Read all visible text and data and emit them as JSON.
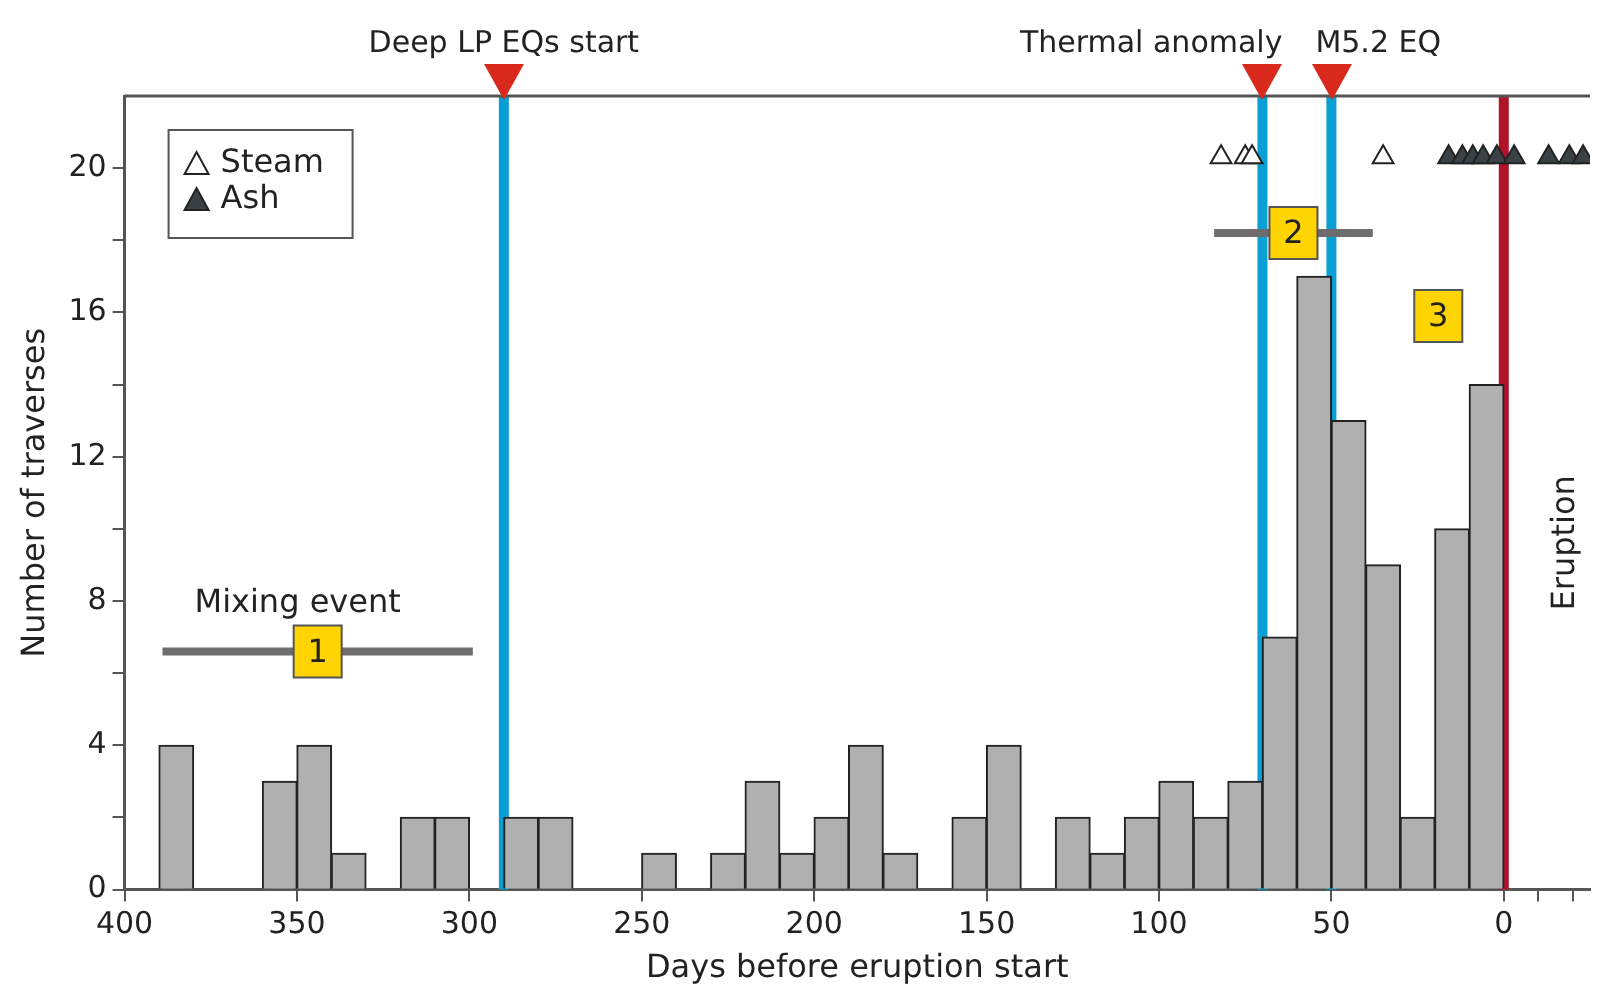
{
  "chart_data": {
    "type": "histogram",
    "xlabel": "Days before eruption start",
    "ylabel": "Number of traverses",
    "bins": [
      390,
      380,
      370,
      360,
      350,
      340,
      330,
      320,
      310,
      300,
      290,
      280,
      270,
      260,
      250,
      240,
      230,
      220,
      210,
      200,
      190,
      180,
      170,
      160,
      150,
      140,
      130,
      120,
      110,
      100,
      90,
      80,
      70,
      60,
      50,
      40,
      30,
      20,
      10,
      0
    ],
    "values": [
      4,
      0,
      0,
      3,
      4,
      1,
      0,
      2,
      2,
      0,
      2,
      2,
      0,
      0,
      1,
      0,
      1,
      3,
      1,
      2,
      4,
      1,
      0,
      2,
      4,
      0,
      2,
      1,
      2,
      3,
      2,
      3,
      7,
      17,
      13,
      9,
      2,
      10,
      14
    ],
    "color": "#b0b0b0",
    "series": [
      {
        "type": "scatter",
        "name": "Steam",
        "color": "#ffffff",
        "marker": "triangle",
        "x": [
          82,
          75,
          73,
          35
        ],
        "values": [
          20.3,
          20.3,
          20.3,
          20.3
        ]
      },
      {
        "type": "scatter",
        "name": "Ash",
        "color": "#3a4245",
        "marker": "triangle",
        "x": [
          16,
          12,
          9,
          6,
          2,
          -3,
          -13,
          -19,
          -23
        ],
        "values": [
          20.3,
          20.3,
          20.3,
          20.3,
          20.3,
          20.3,
          20.3,
          20.3,
          20.3
        ]
      },
      {
        "type": "line",
        "name": "Mixing event",
        "color": "#6d6d6d",
        "marker": "none",
        "x": [
          389,
          299
        ],
        "values": [
          6.6,
          6.6
        ]
      },
      {
        "type": "line",
        "color": "#6d6d6d",
        "marker": "none",
        "x": [
          84,
          38
        ],
        "values": [
          18.2,
          18.2
        ]
      }
    ],
    "ref_lines": [
      {
        "axis": "x",
        "value": 290,
        "label": "Deep LP EQs start",
        "color": "#0a9fd4"
      },
      {
        "axis": "x",
        "value": 70,
        "label": "Thermal anomaly",
        "color": "#0a9fd4"
      },
      {
        "axis": "x",
        "value": 50,
        "label": "M5.2 EQ",
        "color": "#0a9fd4"
      },
      {
        "axis": "x",
        "value": 0,
        "color": "#b0122a"
      }
    ],
    "annotations": [
      {
        "text": "1",
        "x": 344,
        "y": 6.6
      },
      {
        "text": "2",
        "x": 61,
        "y": 18.2
      },
      {
        "text": "3",
        "x": 19,
        "y": 15.9
      },
      "Eruption"
    ],
    "xlim": [
      400,
      -25
    ],
    "xticks": [
      400,
      350,
      300,
      250,
      200,
      150,
      100,
      50,
      0,
      {
        "value": -10,
        "label": null
      },
      {
        "value": -20,
        "label": null
      }
    ],
    "ylim": [
      0,
      22
    ],
    "yticks": [
      0,
      {
        "value": 2,
        "label": null
      },
      4,
      {
        "value": 6,
        "label": null
      },
      8,
      {
        "value": 10,
        "label": null
      },
      12,
      {
        "value": 14,
        "label": null
      },
      16,
      {
        "value": 18,
        "label": null
      },
      20
    ],
    "grid": false,
    "legend": "top left"
  }
}
